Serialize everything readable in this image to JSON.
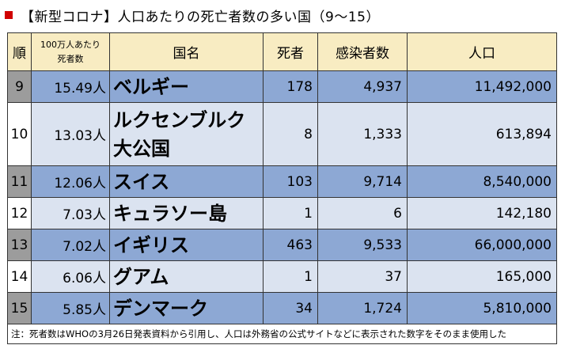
{
  "title": "【新型コロナ】人口あたりの死亡者数の多い国（9～15）",
  "colors": {
    "marker": "#d00000",
    "header": "#f8ecc2",
    "row_blue": "#8da8d4",
    "row_light": "#dbe3f0",
    "rank_dark": "#9c9c9c"
  },
  "table": {
    "headers": {
      "rank": "順",
      "rate_line1": "100万人あたり",
      "rate_line2": "死者数",
      "country": "国名",
      "deaths": "死者",
      "cases": "感染者数",
      "population": "人口"
    },
    "rows": [
      {
        "rank": "9",
        "rate": "15.49人",
        "country": "ベルギー",
        "country2": "",
        "deaths": "178",
        "cases": "4,937",
        "population": "11,492,000"
      },
      {
        "rank": "10",
        "rate": "13.03人",
        "country": "ルクセンブルク",
        "country2": "大公国",
        "deaths": "8",
        "cases": "1,333",
        "population": "613,894"
      },
      {
        "rank": "11",
        "rate": "12.06人",
        "country": "スイス",
        "country2": "",
        "deaths": "103",
        "cases": "9,714",
        "population": "8,540,000"
      },
      {
        "rank": "12",
        "rate": "7.03人",
        "country": "キュラソー島",
        "country2": "",
        "deaths": "1",
        "cases": "6",
        "population": "142,180"
      },
      {
        "rank": "13",
        "rate": "7.02人",
        "country": "イギリス",
        "country2": "",
        "deaths": "463",
        "cases": "9,533",
        "population": "66,000,000"
      },
      {
        "rank": "14",
        "rate": "6.06人",
        "country": "グアム",
        "country2": "",
        "deaths": "1",
        "cases": "37",
        "population": "165,000"
      },
      {
        "rank": "15",
        "rate": "5.85人",
        "country": "デンマーク",
        "country2": "",
        "deaths": "34",
        "cases": "1,724",
        "population": "5,810,000"
      }
    ],
    "note": "注：死者数はWHOの3月26日発表資料から引用し、人口は外務省の公式サイトなどに表示された数字をそのまま使用した"
  }
}
